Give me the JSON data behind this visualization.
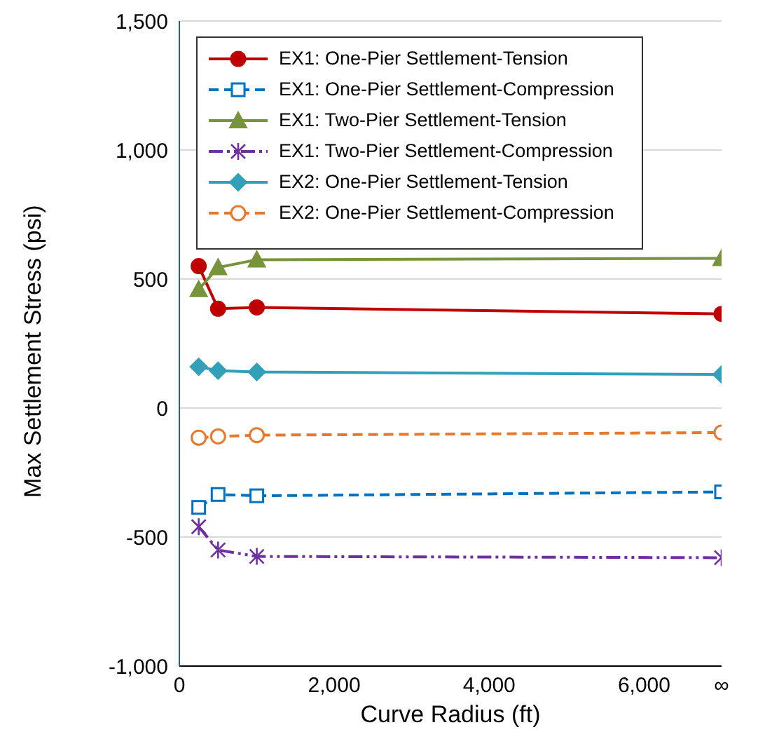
{
  "chart_data": {
    "type": "line",
    "xlabel": "Curve Radius (ft)",
    "ylabel": "Max Settlement Stress (psi)",
    "x": [
      250,
      500,
      1000,
      7000
    ],
    "xlim": [
      0,
      7000
    ],
    "xticks": [
      0,
      {
        "value": 2000,
        "label": "2,000"
      },
      {
        "value": 4000,
        "label": "4,000"
      },
      {
        "value": 6000,
        "label": "6,000"
      },
      {
        "value": 7000,
        "label": "∞"
      }
    ],
    "ylim": [
      -1000,
      1500
    ],
    "yticks": [
      {
        "value": -1000,
        "label": "-1,000"
      },
      -500,
      0,
      500,
      {
        "value": 1000,
        "label": "1,000"
      },
      {
        "value": 1500,
        "label": "1,500"
      }
    ],
    "grid": "y",
    "legend": "top left",
    "series": [
      {
        "name": "EX1: One-Pier Settlement-Tension",
        "color": "#c00000",
        "marker": "circle",
        "line_style": "solid",
        "values": [
          550,
          385,
          390,
          365
        ]
      },
      {
        "name": "EX1: One-Pier Settlement-Compression",
        "color": "#0070c0",
        "marker": "square",
        "line_style": "dashed",
        "values": [
          -385,
          -335,
          -340,
          -325
        ]
      },
      {
        "name": "EX1: Two-Pier Settlement-Tension",
        "color": "#77933c",
        "marker": "triangle",
        "line_style": "solid",
        "values": [
          460,
          545,
          575,
          580
        ]
      },
      {
        "name": "EX1: Two-Pier Settlement-Compression",
        "color": "#7030a0",
        "marker": "cross",
        "line_style": "dotted",
        "values": [
          -460,
          -550,
          -575,
          -580
        ]
      },
      {
        "name": "EX2: One-Pier Settlement-Tension",
        "color": "#31a0b8",
        "marker": "diamond",
        "line_style": "solid",
        "values": [
          160,
          145,
          140,
          130
        ]
      },
      {
        "name": "EX2: One-Pier Settlement-Compression",
        "color": "#e8782c",
        "marker": "circle",
        "line_style": "dashed",
        "values": [
          -115,
          -110,
          -105,
          -95
        ]
      }
    ]
  }
}
